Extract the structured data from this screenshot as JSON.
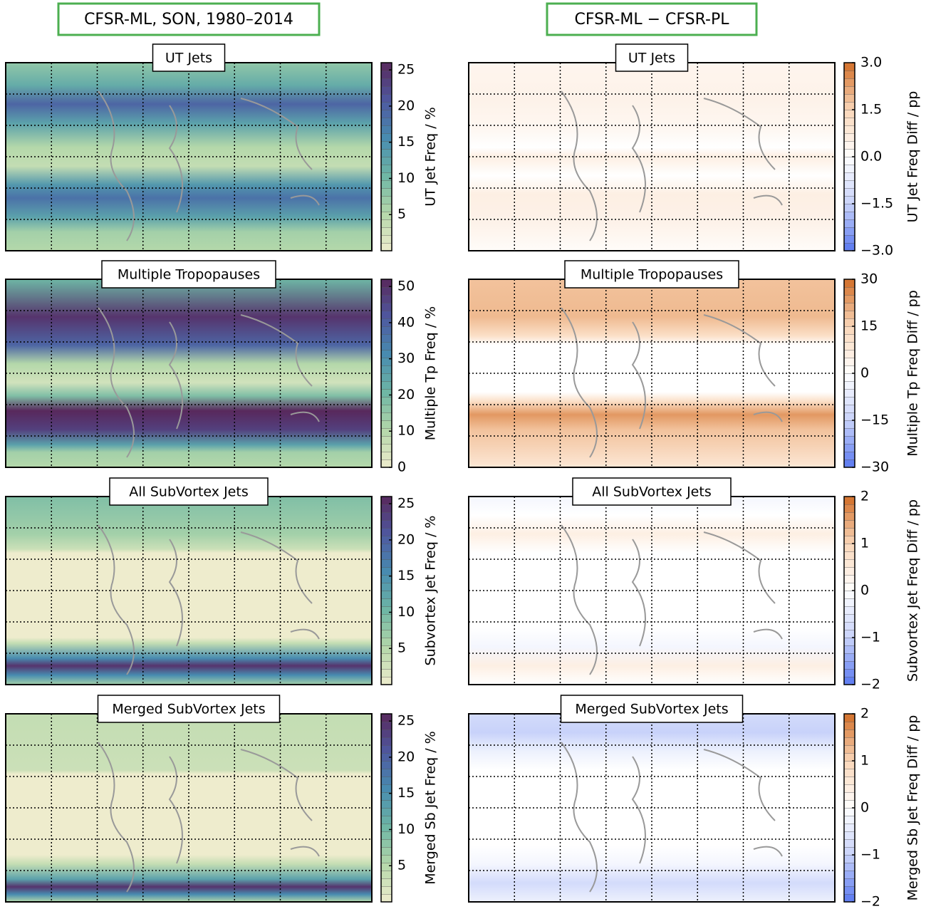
{
  "columns": [
    {
      "header": "CFSR-ML, SON, 1980–2014",
      "panels": [
        {
          "title": "UT Jets",
          "colorbar": {
            "label": "UT Jet Freq / %",
            "lim": [
              0,
              26
            ],
            "ticks": [
              5,
              10,
              15,
              20,
              25
            ]
          }
        },
        {
          "title": "Multiple Tropopauses",
          "colorbar": {
            "label": "Multiple Tp Freq / %",
            "lim": [
              0,
              52
            ],
            "ticks": [
              0,
              10,
              20,
              30,
              40,
              50
            ]
          }
        },
        {
          "title": "All SubVortex Jets",
          "colorbar": {
            "label": "Subvortex Jet Freq / %",
            "lim": [
              0,
              26
            ],
            "ticks": [
              5,
              10,
              15,
              20,
              25
            ]
          }
        },
        {
          "title": "Merged SubVortex Jets",
          "colorbar": {
            "label": "Merged Sb Jet Freq / %",
            "lim": [
              0,
              26
            ],
            "ticks": [
              5,
              10,
              15,
              20,
              25
            ]
          }
        }
      ]
    },
    {
      "header": "CFSR-ML − CFSR-PL",
      "panels": [
        {
          "title": "UT Jets",
          "colorbar": {
            "label": "UT Jet Freq Diff / pp",
            "lim": [
              -3,
              3
            ],
            "ticks": [
              {
                "value": -3,
                "label": "−3.0"
              },
              {
                "value": -1.5,
                "label": "−1.5"
              },
              {
                "value": 0,
                "label": "0.0"
              },
              {
                "value": 1.5,
                "label": "1.5"
              },
              {
                "value": 3,
                "label": "3.0"
              }
            ]
          }
        },
        {
          "title": "Multiple Tropopauses",
          "colorbar": {
            "label": "Multiple Tp Freq Diff / pp",
            "lim": [
              -30,
              30
            ],
            "ticks": [
              {
                "value": -30,
                "label": "−30"
              },
              {
                "value": -15,
                "label": "−15"
              },
              0,
              15,
              30
            ]
          }
        },
        {
          "title": "All SubVortex Jets",
          "colorbar": {
            "label": "Subvortex Jet Freq Diff / pp",
            "lim": [
              -2,
              2
            ],
            "ticks": [
              {
                "value": -2,
                "label": "−2"
              },
              {
                "value": -1,
                "label": "−1"
              },
              0,
              1,
              2
            ]
          }
        },
        {
          "title": "Merged SubVortex Jets",
          "colorbar": {
            "label": "Merged Sb Jet Freq Diff / pp",
            "lim": [
              -2,
              2
            ],
            "ticks": [
              {
                "value": -2,
                "label": "−2"
              },
              {
                "value": -1,
                "label": "−1"
              },
              0,
              1,
              2
            ]
          }
        }
      ]
    }
  ]
}
